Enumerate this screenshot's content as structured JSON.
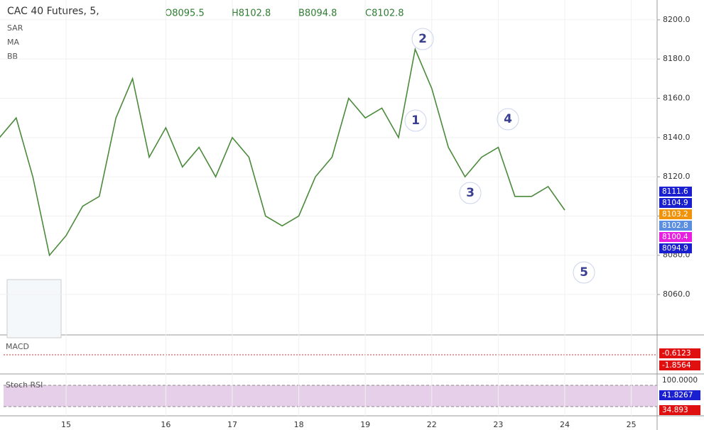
{
  "chart_data": {
    "type": "line",
    "title": "CAC 40 Futures, 5,",
    "ohlc": [
      "O8095.5",
      "H8102.8",
      "B8094.8",
      "C8102.8"
    ],
    "indicators": [
      "SAR",
      "MA",
      "BB"
    ],
    "categories": [
      null,
      null,
      null,
      null,
      "15",
      null,
      null,
      null,
      null,
      null,
      "16",
      null,
      null,
      null,
      "17",
      null,
      null,
      null,
      "18",
      null,
      null,
      null,
      "19",
      null,
      null,
      null,
      "22",
      null,
      null,
      null,
      "23",
      null,
      null,
      null,
      "24",
      null,
      null,
      null,
      "25"
    ],
    "series": [
      {
        "name": "CAC 40 Futures",
        "color": "#4a8a3a",
        "values": [
          8140,
          8150,
          8120,
          8080,
          8090,
          8105,
          8110,
          8150,
          8170,
          8130,
          8145,
          8125,
          8135,
          8120,
          8140,
          8130,
          8100,
          8095,
          8100,
          8120,
          8130,
          8160,
          8150,
          8155,
          8140,
          8185,
          8165,
          8135,
          8120,
          8130,
          8135,
          8110,
          8110,
          8115,
          8103,
          null,
          null,
          null,
          null
        ]
      }
    ],
    "ylim": [
      8039.4,
      8210.1
    ],
    "yticks": [
      {
        "value": 8060,
        "label": "8060.0"
      },
      {
        "value": 8080,
        "label": "8080.0"
      },
      {
        "value": 8100,
        "label": "8100.0"
      },
      {
        "value": 8120,
        "label": "8120.0"
      },
      {
        "value": 8140,
        "label": "8140.0"
      },
      {
        "value": 8160,
        "label": "8160.0"
      },
      {
        "value": 8180,
        "label": "8180.0"
      },
      {
        "value": 8200,
        "label": "8200.0"
      }
    ],
    "grid": true,
    "price_labels": [
      {
        "value": 8111.6,
        "label": "8111.6",
        "color": "#1a1fd0"
      },
      {
        "value": 8104.9,
        "label": "8104.9",
        "color": "#1a1fd0"
      },
      {
        "value": 8103.2,
        "label": "8103.2",
        "color": "#f0930a"
      },
      {
        "value": 8102.8,
        "label": "8102.8",
        "color": "#5b8ee0"
      },
      {
        "value": 8100.4,
        "label": "8100.4",
        "color": "#e81ee0"
      },
      {
        "value": 8094.9,
        "label": "8094.9",
        "color": "#1a1fd0"
      }
    ],
    "waves": [
      "1",
      "2",
      "3",
      "4",
      "5"
    ],
    "macd": {
      "name": "MACD",
      "labels": [
        {
          "value": -0.6123,
          "color": "#e01010"
        },
        {
          "value": -1.8564,
          "color": "#e01010"
        }
      ]
    },
    "stoch": {
      "name": "Stoch RSI",
      "labels": [
        {
          "value": 100,
          "label": "100.0000",
          "color": "#ffffff"
        },
        {
          "value": 41.8267,
          "color": "#1a1fd0"
        },
        {
          "value": 34.893,
          "color": "#e01010"
        }
      ]
    }
  }
}
